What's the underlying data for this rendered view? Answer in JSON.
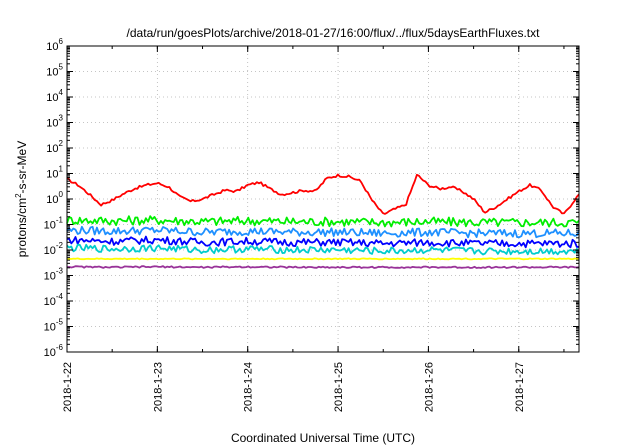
{
  "chart_data": {
    "type": "line",
    "title": "/data/run/goesPlots/archive/2018-01-27/16:00/flux/../flux/5daysEarthFluxes.txt",
    "xlabel": "Coordinated Universal Time (UTC)",
    "ylabel_parts": [
      "protons/cm",
      "2",
      "-s-sr-MeV"
    ],
    "y_scale": "log",
    "ylim": [
      1e-06,
      1000000.0
    ],
    "y_ticks": [
      {
        "base": "10",
        "exp": "-6",
        "value": 1e-06
      },
      {
        "base": "10",
        "exp": "-5",
        "value": 1e-05
      },
      {
        "base": "10",
        "exp": "-4",
        "value": 0.0001
      },
      {
        "base": "10",
        "exp": "-3",
        "value": 0.001
      },
      {
        "base": "10",
        "exp": "-2",
        "value": 0.01
      },
      {
        "base": "10",
        "exp": "-1",
        "value": 0.1
      },
      {
        "base": "10",
        "exp": "0",
        "value": 1
      },
      {
        "base": "10",
        "exp": "1",
        "value": 10
      },
      {
        "base": "10",
        "exp": "2",
        "value": 100
      },
      {
        "base": "10",
        "exp": "3",
        "value": 1000
      },
      {
        "base": "10",
        "exp": "4",
        "value": 10000
      },
      {
        "base": "10",
        "exp": "5",
        "value": 100000
      },
      {
        "base": "10",
        "exp": "6",
        "value": 1000000
      }
    ],
    "xlim": [
      "2018-01-22 00:00",
      "2018-01-27 16:00"
    ],
    "x_ticks": [
      "2018-1-22",
      "2018-1-23",
      "2018-1-24",
      "2018-1-25",
      "2018-1-26",
      "2018-1-27"
    ],
    "grid": true,
    "series": [
      {
        "color": "#ff0000",
        "x": [
          "2018-01-22 00:00",
          "2018-01-22 03:00",
          "2018-01-22 06:00",
          "2018-01-22 09:00",
          "2018-01-22 12:00",
          "2018-01-22 15:00",
          "2018-01-22 18:00",
          "2018-01-22 21:00",
          "2018-01-23 00:00",
          "2018-01-23 03:00",
          "2018-01-23 06:00",
          "2018-01-23 09:00",
          "2018-01-23 12:00",
          "2018-01-23 15:00",
          "2018-01-23 18:00",
          "2018-01-23 21:00",
          "2018-01-24 00:00",
          "2018-01-24 03:00",
          "2018-01-24 06:00",
          "2018-01-24 09:00",
          "2018-01-24 12:00",
          "2018-01-24 15:00",
          "2018-01-24 18:00",
          "2018-01-24 21:00",
          "2018-01-25 00:00",
          "2018-01-25 03:00",
          "2018-01-25 06:00",
          "2018-01-25 09:00",
          "2018-01-25 12:00",
          "2018-01-25 15:00",
          "2018-01-25 18:00",
          "2018-01-25 21:00",
          "2018-01-26 00:00",
          "2018-01-26 03:00",
          "2018-01-26 06:00",
          "2018-01-26 09:00",
          "2018-01-26 12:00",
          "2018-01-26 15:00",
          "2018-01-26 18:00",
          "2018-01-26 21:00",
          "2018-01-27 00:00",
          "2018-01-27 03:00",
          "2018-01-27 06:00",
          "2018-01-27 09:00",
          "2018-01-27 12:00",
          "2018-01-27 15:00",
          "2018-01-27 16:00"
        ],
        "values": [
          6.0,
          3.5,
          1.5,
          0.6,
          0.9,
          1.6,
          2.6,
          3.5,
          4.2,
          3.0,
          1.2,
          0.8,
          1.0,
          1.5,
          2.2,
          2.0,
          3.5,
          4.5,
          2.5,
          1.5,
          1.8,
          2.2,
          2.0,
          6.5,
          8.5,
          7.5,
          5.0,
          0.9,
          0.25,
          0.4,
          0.6,
          9.0,
          3.5,
          2.5,
          3.0,
          2.0,
          1.0,
          0.3,
          0.5,
          1.0,
          2.0,
          3.5,
          2.2,
          0.5,
          0.25,
          1.0,
          1.5
        ]
      },
      {
        "color": "#00ee00",
        "x": [
          "2018-01-22 00:00",
          "2018-01-22 12:00",
          "2018-01-23 00:00",
          "2018-01-23 12:00",
          "2018-01-24 00:00",
          "2018-01-24 12:00",
          "2018-01-25 00:00",
          "2018-01-25 12:00",
          "2018-01-26 00:00",
          "2018-01-26 12:00",
          "2018-01-27 00:00",
          "2018-01-27 12:00",
          "2018-01-27 16:00"
        ],
        "values": [
          0.15,
          0.14,
          0.15,
          0.13,
          0.14,
          0.13,
          0.13,
          0.12,
          0.13,
          0.12,
          0.12,
          0.12,
          0.12
        ]
      },
      {
        "color": "#1e90ff",
        "x": [
          "2018-01-22 00:00",
          "2018-01-22 12:00",
          "2018-01-23 00:00",
          "2018-01-23 12:00",
          "2018-01-24 00:00",
          "2018-01-24 12:00",
          "2018-01-25 00:00",
          "2018-01-25 12:00",
          "2018-01-26 00:00",
          "2018-01-26 12:00",
          "2018-01-27 00:00",
          "2018-01-27 12:00",
          "2018-01-27 16:00"
        ],
        "values": [
          0.06,
          0.055,
          0.06,
          0.05,
          0.055,
          0.05,
          0.05,
          0.045,
          0.05,
          0.045,
          0.045,
          0.045,
          0.045
        ]
      },
      {
        "color": "#0000ff",
        "x": [
          "2018-01-22 00:00",
          "2018-01-22 12:00",
          "2018-01-23 00:00",
          "2018-01-23 12:00",
          "2018-01-24 00:00",
          "2018-01-24 12:00",
          "2018-01-25 00:00",
          "2018-01-25 12:00",
          "2018-01-26 00:00",
          "2018-01-26 12:00",
          "2018-01-27 00:00",
          "2018-01-27 12:00",
          "2018-01-27 16:00"
        ],
        "values": [
          0.025,
          0.022,
          0.025,
          0.02,
          0.022,
          0.02,
          0.02,
          0.018,
          0.02,
          0.018,
          0.018,
          0.018,
          0.018
        ]
      },
      {
        "color": "#00cccc",
        "x": [
          "2018-01-22 00:00",
          "2018-01-22 12:00",
          "2018-01-23 00:00",
          "2018-01-23 12:00",
          "2018-01-24 00:00",
          "2018-01-24 12:00",
          "2018-01-25 00:00",
          "2018-01-25 12:00",
          "2018-01-26 00:00",
          "2018-01-26 12:00",
          "2018-01-27 00:00",
          "2018-01-27 12:00",
          "2018-01-27 16:00"
        ],
        "values": [
          0.012,
          0.011,
          0.012,
          0.01,
          0.011,
          0.01,
          0.01,
          0.009,
          0.01,
          0.009,
          0.009,
          0.009,
          0.009
        ]
      },
      {
        "color": "#ffff00",
        "x": [
          "2018-01-22 00:00",
          "2018-01-27 16:00"
        ],
        "values": [
          0.0045,
          0.0045
        ]
      },
      {
        "color": "#993399",
        "x": [
          "2018-01-22 00:00",
          "2018-01-22 12:00",
          "2018-01-23 00:00",
          "2018-01-23 12:00",
          "2018-01-24 00:00",
          "2018-01-24 12:00",
          "2018-01-25 00:00",
          "2018-01-25 12:00",
          "2018-01-26 00:00",
          "2018-01-26 12:00",
          "2018-01-27 00:00",
          "2018-01-27 12:00",
          "2018-01-27 16:00"
        ],
        "values": [
          0.0022,
          0.0021,
          0.0022,
          0.0021,
          0.0022,
          0.0021,
          0.0021,
          0.0021,
          0.0021,
          0.0021,
          0.0021,
          0.0021,
          0.0021
        ]
      }
    ]
  }
}
